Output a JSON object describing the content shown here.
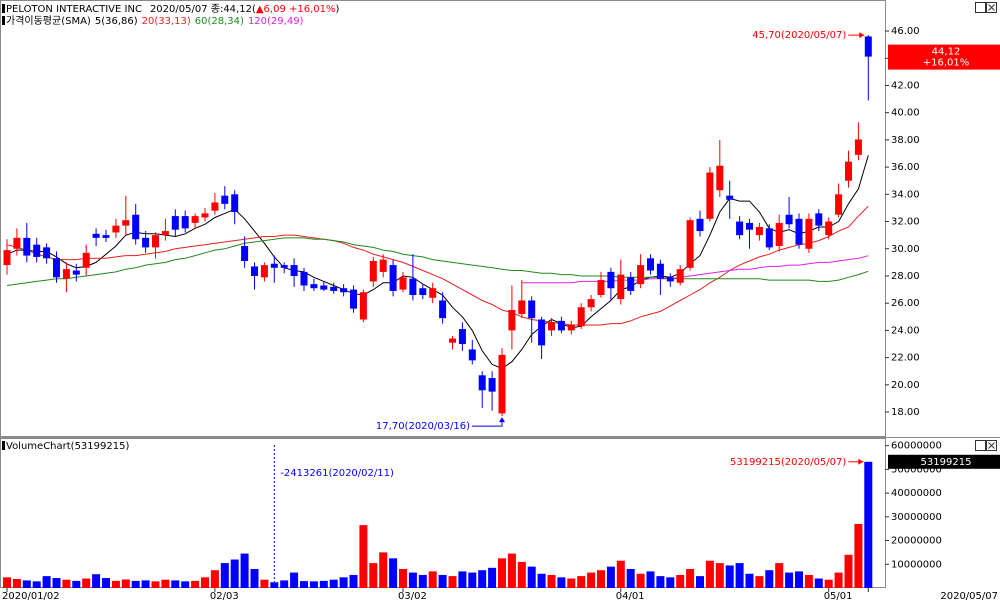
{
  "chart_data": [
    {
      "type": "candlestick",
      "title": "PELOTON INTERACTIVE INC",
      "quote": "2020/05/07 종:44,12(",
      "change": "▲6,09 +16,01%",
      "quote_end": ")",
      "indicator": "가격이동평균(SMA)",
      "categories": [
        "2020/01/02",
        null,
        null,
        null,
        null,
        null,
        null,
        null,
        null,
        null,
        null,
        null,
        null,
        null,
        null,
        null,
        null,
        null,
        null,
        null,
        null,
        "02/03",
        null,
        null,
        null,
        null,
        null,
        null,
        null,
        null,
        null,
        null,
        null,
        null,
        null,
        null,
        null,
        null,
        null,
        null,
        "03/02",
        null,
        null,
        null,
        null,
        null,
        null,
        null,
        null,
        null,
        null,
        null,
        null,
        null,
        null,
        null,
        null,
        null,
        null,
        null,
        null,
        null,
        "04/01",
        null,
        null,
        null,
        null,
        null,
        null,
        null,
        null,
        null,
        null,
        null,
        null,
        null,
        null,
        null,
        null,
        null,
        null,
        null,
        null,
        "05/01",
        null,
        null,
        null,
        "2020/05/07"
      ],
      "open": [
        28.8,
        30.0,
        30.8,
        30.3,
        30.1,
        29.3,
        27.8,
        28.4,
        28.6,
        31.1,
        31.0,
        31.2,
        31.7,
        32.5,
        30.8,
        30.1,
        31.0,
        32.4,
        32.4,
        31.9,
        32.3,
        32.8,
        33.9,
        34.0,
        30.2,
        28.7,
        27.9,
        28.9,
        28.8,
        28.8,
        28.3,
        27.4,
        27.3,
        27.2,
        27.1,
        27.0,
        24.8,
        27.6,
        28.3,
        28.8,
        27.0,
        27.8,
        27.1,
        26.4,
        26.2,
        23.1,
        24.1,
        22.6,
        20.7,
        20.5,
        17.9,
        24.0,
        25.2,
        26.2,
        24.8,
        24.0,
        24.7,
        24.0,
        24.3,
        25.7,
        26.6,
        28.3,
        26.3,
        27.9,
        27.4,
        29.3,
        28.9,
        27.9,
        27.5,
        28.6,
        32.2,
        32.2,
        34.3,
        33.9,
        32.0,
        31.9,
        31.0,
        31.5,
        30.2,
        32.5,
        32.2,
        30.0,
        32.6,
        31.0,
        32.5,
        35.0,
        36.9,
        45.6
      ],
      "high": [
        30.7,
        31.5,
        31.9,
        30.8,
        30.4,
        29.8,
        29.0,
        28.9,
        30.3,
        31.5,
        31.4,
        32.2,
        33.9,
        33.3,
        31.3,
        31.2,
        32.2,
        32.9,
        32.8,
        32.6,
        33.0,
        34.1,
        34.6,
        34.3,
        30.9,
        29.0,
        29.0,
        29.5,
        29.0,
        29.3,
        28.6,
        27.8,
        27.6,
        27.5,
        27.4,
        27.3,
        27.0,
        29.4,
        29.6,
        29.2,
        28.3,
        29.6,
        27.4,
        27.5,
        26.8,
        23.6,
        24.6,
        23.3,
        21.0,
        21.0,
        22.7,
        27.3,
        27.7,
        26.5,
        25.0,
        24.9,
        25.0,
        24.7,
        26.0,
        26.6,
        28.3,
        28.6,
        29.2,
        28.3,
        29.6,
        29.6,
        29.2,
        28.2,
        28.8,
        32.3,
        32.8,
        36.0,
        38.0,
        35.0,
        32.4,
        32.2,
        31.9,
        31.8,
        32.5,
        33.8,
        32.6,
        32.6,
        32.9,
        32.3,
        34.8,
        37.2,
        39.3,
        45.7
      ],
      "low": [
        28.1,
        29.5,
        29.0,
        29.0,
        28.9,
        27.5,
        26.8,
        27.6,
        28.0,
        30.2,
        30.5,
        30.8,
        31.0,
        30.3,
        29.7,
        29.3,
        30.6,
        30.9,
        31.2,
        31.5,
        32.0,
        32.5,
        32.9,
        31.8,
        28.6,
        27.0,
        27.6,
        27.5,
        28.2,
        27.2,
        26.9,
        26.9,
        26.9,
        26.7,
        26.5,
        25.3,
        24.6,
        27.2,
        27.9,
        26.5,
        26.8,
        26.2,
        26.3,
        26.0,
        24.5,
        22.6,
        22.5,
        21.5,
        18.3,
        18.1,
        17.7,
        22.6,
        24.9,
        23.1,
        21.9,
        23.6,
        23.8,
        23.7,
        24.1,
        25.4,
        26.4,
        26.2,
        25.9,
        26.6,
        27.1,
        28.1,
        26.6,
        27.2,
        27.3,
        28.4,
        30.9,
        32.0,
        33.8,
        32.2,
        30.7,
        30.0,
        30.6,
        29.9,
        29.8,
        31.5,
        30.0,
        29.7,
        31.3,
        30.7,
        32.3,
        34.5,
        36.5,
        40.9
      ],
      "close": [
        29.9,
        30.8,
        29.5,
        29.4,
        29.3,
        27.9,
        28.5,
        28.1,
        29.7,
        30.8,
        30.8,
        31.7,
        32.1,
        30.7,
        30.1,
        31.0,
        31.3,
        31.4,
        31.5,
        32.4,
        32.6,
        33.4,
        33.3,
        32.7,
        29.1,
        28.0,
        28.8,
        28.6,
        28.6,
        28.0,
        27.3,
        27.1,
        27.0,
        26.9,
        26.8,
        25.6,
        26.8,
        29.1,
        29.2,
        26.9,
        27.9,
        26.6,
        26.6,
        27.1,
        24.9,
        23.4,
        23.0,
        21.8,
        19.6,
        19.5,
        22.2,
        25.5,
        26.2,
        24.9,
        22.9,
        24.6,
        24.0,
        24.4,
        25.7,
        26.3,
        27.7,
        27.1,
        28.1,
        26.9,
        28.8,
        28.4,
        27.8,
        27.6,
        28.5,
        32.1,
        31.3,
        35.6,
        36.1,
        33.6,
        31.0,
        31.4,
        31.6,
        30.1,
        31.9,
        31.8,
        30.3,
        32.2,
        31.7,
        32.0,
        34.0,
        36.4,
        38.03,
        44.12
      ],
      "up_color": "#ff0000",
      "down_color": "#0000ff",
      "series": [
        {
          "name": "5(36,86)",
          "color": "#000000",
          "values": [
            29.6,
            29.9,
            29.9,
            29.8,
            29.8,
            29.4,
            28.9,
            28.6,
            28.7,
            29.0,
            29.6,
            30.2,
            31.0,
            31.2,
            31.1,
            31.1,
            31.0,
            30.9,
            31.1,
            31.5,
            31.8,
            32.3,
            32.6,
            32.9,
            32.2,
            31.3,
            30.4,
            29.4,
            28.6,
            28.4,
            28.3,
            27.9,
            27.6,
            27.3,
            27.0,
            26.7,
            26.6,
            27.0,
            27.5,
            27.5,
            28.0,
            27.9,
            27.4,
            27.0,
            26.6,
            25.7,
            25.0,
            24.0,
            22.5,
            21.5,
            21.2,
            21.7,
            22.6,
            23.7,
            24.3,
            24.8,
            24.5,
            24.2,
            24.3,
            25.0,
            25.6,
            26.2,
            27.0,
            27.2,
            27.7,
            27.9,
            28.0,
            27.9,
            28.2,
            28.9,
            29.5,
            31.0,
            32.7,
            33.7,
            33.5,
            33.5,
            32.7,
            31.5,
            31.2,
            31.4,
            31.1,
            31.3,
            31.6,
            31.6,
            32.0,
            33.3,
            34.4,
            36.86
          ]
        },
        {
          "name": "20(33,13)",
          "color": "#e8201e",
          "values": [
            30.3,
            30.1,
            29.9,
            29.6,
            29.4,
            29.2,
            29.2,
            29.2,
            29.3,
            29.3,
            29.3,
            29.4,
            29.5,
            29.5,
            29.6,
            29.7,
            29.8,
            30.0,
            30.1,
            30.2,
            30.3,
            30.4,
            30.5,
            30.6,
            30.7,
            30.8,
            30.9,
            30.9,
            31.0,
            31.0,
            30.9,
            30.8,
            30.7,
            30.6,
            30.4,
            30.1,
            29.9,
            29.6,
            29.4,
            29.2,
            29.0,
            28.7,
            28.4,
            28.1,
            27.8,
            27.4,
            27.0,
            26.6,
            26.2,
            25.9,
            25.5,
            25.3,
            25.0,
            24.8,
            24.7,
            24.6,
            24.5,
            24.4,
            24.4,
            24.4,
            24.4,
            24.5,
            24.5,
            24.7,
            25.0,
            25.2,
            25.4,
            25.8,
            26.2,
            26.6,
            27.0,
            27.5,
            27.9,
            28.4,
            28.8,
            29.1,
            29.4,
            29.6,
            29.9,
            30.1,
            30.3,
            30.4,
            30.6,
            30.9,
            31.3,
            31.6,
            32.4,
            33.13
          ]
        },
        {
          "name": "60(28,34)",
          "color": "#1f8a1f",
          "values": [
            27.3,
            27.4,
            27.5,
            27.6,
            27.7,
            27.8,
            27.8,
            27.9,
            28.0,
            28.1,
            28.2,
            28.3,
            28.5,
            28.6,
            28.8,
            28.9,
            29.0,
            29.2,
            29.3,
            29.5,
            29.7,
            29.9,
            30.0,
            30.2,
            30.4,
            30.5,
            30.6,
            30.7,
            30.8,
            30.8,
            30.8,
            30.7,
            30.7,
            30.6,
            30.5,
            30.3,
            30.2,
            30.1,
            29.9,
            29.8,
            29.6,
            29.5,
            29.4,
            29.2,
            29.1,
            29.0,
            28.9,
            28.8,
            28.7,
            28.6,
            28.5,
            28.4,
            28.4,
            28.3,
            28.2,
            28.2,
            28.1,
            28.1,
            28.0,
            28.0,
            28.0,
            28.0,
            27.9,
            27.9,
            27.9,
            27.9,
            27.9,
            27.8,
            27.8,
            27.8,
            27.8,
            27.8,
            27.8,
            27.8,
            27.8,
            27.8,
            27.8,
            27.7,
            27.7,
            27.7,
            27.7,
            27.7,
            27.6,
            27.6,
            27.7,
            27.9,
            28.1,
            28.34
          ]
        },
        {
          "name": "120(29,49)",
          "color": "#e020e0",
          "values": [
            null,
            null,
            null,
            null,
            null,
            null,
            null,
            null,
            null,
            null,
            null,
            null,
            null,
            null,
            null,
            null,
            null,
            null,
            null,
            null,
            null,
            null,
            null,
            null,
            null,
            null,
            null,
            null,
            null,
            null,
            null,
            null,
            null,
            null,
            null,
            null,
            null,
            null,
            null,
            null,
            null,
            null,
            null,
            null,
            null,
            null,
            null,
            null,
            null,
            null,
            null,
            null,
            27.5,
            27.5,
            27.5,
            27.5,
            27.5,
            27.5,
            27.6,
            27.6,
            27.6,
            27.6,
            27.7,
            27.7,
            27.7,
            27.8,
            27.8,
            27.8,
            27.9,
            28.0,
            28.1,
            28.2,
            28.3,
            28.4,
            28.5,
            28.5,
            28.6,
            28.7,
            28.7,
            28.8,
            28.8,
            28.9,
            29.0,
            29.0,
            29.1,
            29.2,
            29.3,
            29.49
          ]
        }
      ],
      "ylim": [
        16.24,
        48.28
      ],
      "yticks": [
        {
          "value": 18,
          "label": "18.00"
        },
        {
          "value": 20,
          "label": "20.00"
        },
        {
          "value": 22,
          "label": "22.00"
        },
        {
          "value": 24,
          "label": "24.00"
        },
        {
          "value": 26,
          "label": "26.00"
        },
        {
          "value": 28,
          "label": "28.00"
        },
        {
          "value": 30,
          "label": "30.00"
        },
        {
          "value": 32,
          "label": "32.00"
        },
        {
          "value": 34,
          "label": "34.00"
        },
        {
          "value": 36,
          "label": "36.00"
        },
        {
          "value": 38,
          "label": "38.00"
        },
        {
          "value": 40,
          "label": "40.00"
        },
        {
          "value": 42,
          "label": "42.00"
        },
        {
          "value": 44,
          "label": "44.00"
        },
        {
          "value": 46,
          "label": "46.00"
        }
      ],
      "high_note": "45,70(2020/05/07)",
      "low_note": "17,70(2020/03/16)",
      "last_label": "44,12",
      "last_change": "+16,01%"
    },
    {
      "type": "bar",
      "title": "VolumeChart(53199215)",
      "values": [
        4500000,
        3800000,
        3200000,
        2800000,
        5000000,
        4200000,
        3500000,
        3000000,
        4000000,
        5800000,
        4200000,
        3000000,
        3600000,
        3000000,
        3200000,
        2800000,
        3500000,
        3200000,
        2800000,
        3000000,
        4500000,
        7500000,
        10500000,
        12000000,
        14500000,
        8000000,
        3500000,
        2413261,
        3200000,
        6500000,
        2900000,
        2800000,
        3000000,
        3500000,
        4500000,
        5500000,
        26500000,
        10500000,
        15000000,
        12500000,
        8000000,
        6500000,
        5500000,
        7000000,
        5500000,
        5000000,
        7000000,
        6500000,
        7500000,
        8500000,
        12500000,
        14500000,
        11000000,
        9000000,
        6000000,
        5500000,
        4500000,
        4000000,
        5000000,
        6500000,
        7500000,
        9000000,
        11500000,
        8000000,
        6000000,
        7000000,
        5000000,
        4500000,
        5500000,
        8000000,
        5000000,
        11500000,
        10500000,
        9500000,
        10500000,
        6000000,
        5000000,
        7500000,
        10500000,
        6500000,
        7000000,
        5500000,
        4000000,
        3500000,
        6500000,
        14000000,
        27000000,
        53199215
      ],
      "ylim": [
        0,
        62800000
      ],
      "yticks": [
        10000000,
        20000000,
        30000000,
        40000000,
        50000000,
        60000000
      ],
      "min_note": "-2413261(2020/02/11)",
      "max_note": "53199215(2020/05/07)",
      "last_label": "53199215"
    }
  ]
}
